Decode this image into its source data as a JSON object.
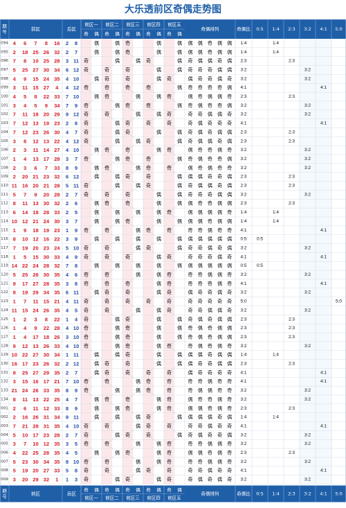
{
  "title": "大乐透前区奇偶走势图",
  "header": {
    "period_label": "期号",
    "front_label": "前区",
    "back_label": "后区",
    "zones": [
      "前区一",
      "前区二",
      "前区三",
      "前区四",
      "前区五"
    ],
    "odd_char": "奇",
    "even_char": "偶",
    "pattern_label": "奇偶排列",
    "ratio_label": "奇偶比",
    "ratio_columns": [
      "0:5",
      "1:4",
      "2:3",
      "3:2",
      "4:1",
      "5:0"
    ]
  },
  "colors": {
    "header_bg": "#1f5fa8",
    "header_text": "#ffffff",
    "title_color": "#1f5fa8",
    "front_number": "#d4202a",
    "back_number": "#1f4fa8",
    "odd_zone_fill": "#fce8ea",
    "even_zone_fill": "#ffffff",
    "ratio_highlight_fill": "#dbeafa"
  },
  "chart_data": {
    "type": "table",
    "rows": [
      {
        "period": "094",
        "front": [
          4,
          6,
          7,
          8,
          16
        ],
        "back": [
          2,
          8
        ],
        "ratio": "1:4"
      },
      {
        "period": "095",
        "front": [
          2,
          18,
          25,
          26,
          32
        ],
        "back": [
          2,
          7
        ],
        "ratio": "1:4"
      },
      {
        "period": "096",
        "front": [
          7,
          8,
          10,
          25,
          28
        ],
        "back": [
          3,
          11
        ],
        "ratio": "2:3"
      },
      {
        "period": "097",
        "front": [
          5,
          25,
          27,
          30,
          34
        ],
        "back": [
          6,
          12
        ],
        "ratio": "3:2"
      },
      {
        "period": "098",
        "front": [
          4,
          9,
          15,
          24,
          35
        ],
        "back": [
          4,
          10
        ],
        "ratio": "3:2"
      },
      {
        "period": "099",
        "front": [
          3,
          11,
          15,
          27,
          4
        ],
        "back": [
          4,
          12
        ],
        "ratio": "4:1"
      },
      {
        "period": "100",
        "front": [
          4,
          5,
          8,
          22,
          33
        ],
        "back": [
          7,
          10
        ],
        "ratio": "2:3"
      },
      {
        "period": "101",
        "front": [
          3,
          4,
          5,
          9,
          34
        ],
        "back": [
          7,
          9
        ],
        "ratio": "3:2"
      },
      {
        "period": "102",
        "front": [
          7,
          11,
          18,
          20,
          29
        ],
        "back": [
          9,
          12
        ],
        "ratio": "3:2"
      },
      {
        "period": "103",
        "front": [
          7,
          12,
          13,
          19,
          23
        ],
        "back": [
          2,
          8
        ],
        "ratio": "4:1"
      },
      {
        "period": "104",
        "front": [
          7,
          12,
          23,
          26,
          30
        ],
        "back": [
          4,
          7
        ],
        "ratio": "2:3"
      },
      {
        "period": "105",
        "front": [
          3,
          8,
          12,
          13,
          22
        ],
        "back": [
          4,
          12
        ],
        "ratio": "2:3"
      },
      {
        "period": "106",
        "front": [
          2,
          3,
          11,
          14,
          27
        ],
        "back": [
          4,
          10
        ],
        "ratio": "3:2"
      },
      {
        "period": "107",
        "front": [
          1,
          4,
          13,
          17,
          28
        ],
        "back": [
          3,
          7
        ],
        "ratio": "3:2"
      },
      {
        "period": "108",
        "front": [
          2,
          3,
          6,
          7,
          33
        ],
        "back": [
          8,
          9
        ],
        "ratio": "3:2"
      },
      {
        "period": "109",
        "front": [
          2,
          20,
          21,
          23,
          32
        ],
        "back": [
          6,
          12
        ],
        "ratio": "2:3"
      },
      {
        "period": "110",
        "front": [
          11,
          16,
          20,
          21,
          28
        ],
        "back": [
          5,
          11
        ],
        "ratio": "2:3"
      },
      {
        "period": "111",
        "front": [
          5,
          7,
          9,
          20,
          28
        ],
        "back": [
          2,
          7
        ],
        "ratio": "3:2"
      },
      {
        "period": "112",
        "front": [
          8,
          11,
          13,
          30,
          32
        ],
        "back": [
          2,
          6
        ],
        "ratio": "2:3"
      },
      {
        "period": "113",
        "front": [
          6,
          14,
          18,
          28,
          33
        ],
        "back": [
          2,
          5
        ],
        "ratio": "1:4"
      },
      {
        "period": "114",
        "front": [
          10,
          12,
          21,
          24,
          30
        ],
        "back": [
          3,
          7
        ],
        "ratio": "1:4"
      },
      {
        "period": "115",
        "front": [
          1,
          9,
          18,
          19,
          23
        ],
        "back": [
          1,
          9
        ],
        "ratio": "4:1"
      },
      {
        "period": "116",
        "front": [
          8,
          10,
          12,
          16,
          22
        ],
        "back": [
          3,
          9
        ],
        "ratio": "0:5"
      },
      {
        "period": "117",
        "front": [
          7,
          19,
          20,
          23,
          24
        ],
        "back": [
          5,
          10
        ],
        "ratio": "3:2"
      },
      {
        "period": "118",
        "front": [
          1,
          5,
          15,
          30,
          33
        ],
        "back": [
          4,
          9
        ],
        "ratio": "4:1"
      },
      {
        "period": "119",
        "front": [
          14,
          22,
          24,
          28,
          32
        ],
        "back": [
          7,
          8
        ],
        "ratio": "0:5"
      },
      {
        "period": "120",
        "front": [
          5,
          25,
          26,
          30,
          35
        ],
        "back": [
          4,
          6
        ],
        "ratio": "3:2"
      },
      {
        "period": "121",
        "front": [
          9,
          17,
          27,
          28,
          35
        ],
        "back": [
          3,
          8
        ],
        "ratio": "4:1"
      },
      {
        "period": "122",
        "front": [
          8,
          19,
          29,
          34,
          35
        ],
        "back": [
          6,
          11
        ],
        "ratio": "3:2"
      },
      {
        "period": "123",
        "front": [
          1,
          7,
          11,
          15,
          21
        ],
        "back": [
          4,
          11
        ],
        "ratio": "5:0"
      },
      {
        "period": "124",
        "front": [
          11,
          15,
          24,
          26,
          35
        ],
        "back": [
          4,
          5
        ],
        "ratio": "3:2"
      },
      {
        "period": "125",
        "front": [
          1,
          2,
          3,
          8,
          22
        ],
        "back": [
          1,
          4
        ],
        "ratio": "2:3"
      },
      {
        "period": "126",
        "front": [
          1,
          4,
          9,
          22,
          28
        ],
        "back": [
          4,
          10
        ],
        "ratio": "2:3"
      },
      {
        "period": "127",
        "front": [
          1,
          4,
          17,
          18,
          26
        ],
        "back": [
          3,
          10
        ],
        "ratio": "2:3"
      },
      {
        "period": "128",
        "front": [
          9,
          12,
          13,
          26,
          33
        ],
        "back": [
          4,
          10
        ],
        "ratio": "3:2"
      },
      {
        "period": "129",
        "front": [
          10,
          22,
          27,
          30,
          34
        ],
        "back": [
          1,
          11
        ],
        "ratio": "1:4"
      },
      {
        "period": "130",
        "front": [
          16,
          17,
          23,
          26,
          32
        ],
        "back": [
          2,
          12
        ],
        "ratio": "2:3"
      },
      {
        "period": "131",
        "front": [
          8,
          25,
          27,
          29,
          35
        ],
        "back": [
          2,
          7
        ],
        "ratio": "4:1"
      },
      {
        "period": "132",
        "front": [
          3,
          15,
          16,
          17,
          21
        ],
        "back": [
          7,
          10
        ],
        "ratio": "4:1"
      },
      {
        "period": "133",
        "front": [
          21,
          24,
          26,
          33,
          35
        ],
        "back": [
          8,
          9
        ],
        "ratio": "3:2"
      },
      {
        "period": "134",
        "front": [
          8,
          11,
          13,
          22,
          25
        ],
        "back": [
          4,
          7
        ],
        "ratio": "3:2"
      },
      {
        "period": "001",
        "front": [
          2,
          6,
          11,
          12,
          33
        ],
        "back": [
          8,
          9
        ],
        "ratio": "2:3"
      },
      {
        "period": "002",
        "front": [
          2,
          16,
          26,
          31,
          34
        ],
        "back": [
          9,
          11
        ],
        "ratio": "1:4"
      },
      {
        "period": "003",
        "front": [
          7,
          21,
          28,
          31,
          35
        ],
        "back": [
          4,
          10
        ],
        "ratio": "4:1"
      },
      {
        "period": "004",
        "front": [
          5,
          10,
          17,
          23,
          28
        ],
        "back": [
          2,
          7
        ],
        "ratio": "3:2"
      },
      {
        "period": "005",
        "front": [
          3,
          7,
          10,
          12,
          35
        ],
        "back": [
          3,
          5
        ],
        "ratio": "3:2"
      },
      {
        "period": "006",
        "front": [
          4,
          22,
          25,
          28,
          35
        ],
        "back": [
          4,
          5
        ],
        "ratio": "2:3"
      },
      {
        "period": "007",
        "front": [
          5,
          23,
          30,
          34,
          35
        ],
        "back": [
          8,
          10
        ],
        "ratio": "3:2"
      },
      {
        "period": "008",
        "front": [
          5,
          19,
          20,
          27,
          33
        ],
        "back": [
          5,
          8
        ],
        "ratio": "4:1"
      },
      {
        "period": "009",
        "front": [
          3,
          20,
          29,
          32,
          1
        ],
        "back": [
          1,
          3
        ],
        "ratio": "3:2"
      }
    ]
  }
}
